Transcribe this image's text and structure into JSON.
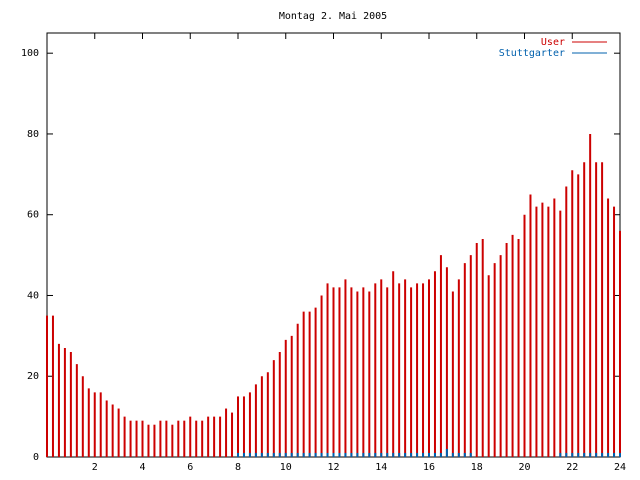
{
  "chart_data": {
    "type": "impulses",
    "title": "Montag 2. Mai 2005",
    "x": [
      0,
      0.25,
      0.5,
      0.75,
      1,
      1.25,
      1.5,
      1.75,
      2,
      2.25,
      2.5,
      2.75,
      3,
      3.25,
      3.5,
      3.75,
      4,
      4.25,
      4.5,
      4.75,
      5,
      5.25,
      5.5,
      5.75,
      6,
      6.25,
      6.5,
      6.75,
      7,
      7.25,
      7.5,
      7.75,
      8,
      8.25,
      8.5,
      8.75,
      9,
      9.25,
      9.5,
      9.75,
      10,
      10.25,
      10.5,
      10.75,
      11,
      11.25,
      11.5,
      11.75,
      12,
      12.25,
      12.5,
      12.75,
      13,
      13.25,
      13.5,
      13.75,
      14,
      14.25,
      14.5,
      14.75,
      15,
      15.25,
      15.5,
      15.75,
      16,
      16.25,
      16.5,
      16.75,
      17,
      17.25,
      17.5,
      17.75,
      18,
      18.25,
      18.5,
      18.75,
      19,
      19.25,
      19.5,
      19.75,
      20,
      20.25,
      20.5,
      20.75,
      21,
      21.25,
      21.5,
      21.75,
      22,
      22.25,
      22.5,
      22.75,
      23,
      23.25,
      23.5,
      23.75,
      24
    ],
    "series": [
      {
        "name": "User",
        "color": "#cc0000",
        "values": [
          35,
          35,
          28,
          27,
          26,
          23,
          20,
          17,
          16,
          16,
          14,
          13,
          12,
          10,
          9,
          9,
          9,
          8,
          8,
          9,
          9,
          8,
          9,
          9,
          10,
          9,
          9,
          10,
          10,
          10,
          12,
          11,
          15,
          15,
          16,
          18,
          20,
          21,
          24,
          26,
          29,
          30,
          33,
          36,
          36,
          37,
          40,
          43,
          42,
          42,
          44,
          42,
          41,
          42,
          41,
          43,
          44,
          42,
          46,
          43,
          44,
          42,
          43,
          43,
          44,
          46,
          50,
          47,
          41,
          44,
          48,
          50,
          53,
          54,
          45,
          48,
          50,
          53,
          55,
          54,
          60,
          65,
          62,
          63,
          62,
          64,
          61,
          67,
          71,
          70,
          73,
          80,
          73,
          73,
          64,
          62,
          56
        ]
      },
      {
        "name": "Stuttgarter",
        "color": "#0060ad",
        "values": [
          0,
          0,
          0,
          0,
          0,
          0,
          0,
          0,
          0,
          0,
          0,
          0,
          0,
          0,
          0,
          0,
          0,
          0,
          0,
          0,
          0,
          0,
          0,
          0,
          0,
          0,
          0,
          0,
          0,
          0,
          0,
          0,
          1,
          1,
          1,
          1,
          1,
          1,
          1,
          1,
          1,
          1,
          1,
          1,
          1,
          1,
          1,
          1,
          1,
          1,
          1,
          1,
          1,
          1,
          1,
          1,
          1,
          1,
          1,
          1,
          1,
          1,
          1,
          1,
          1,
          1,
          1,
          2,
          1,
          1,
          1,
          1,
          0,
          0,
          0,
          0,
          0,
          0,
          0,
          0,
          0,
          0,
          0,
          0,
          0,
          0,
          1,
          1,
          1,
          1,
          1,
          1,
          1,
          1,
          1,
          1,
          1
        ]
      }
    ],
    "xlim": [
      0,
      24
    ],
    "xticks": [
      2,
      4,
      6,
      8,
      10,
      12,
      14,
      16,
      18,
      20,
      22,
      24
    ],
    "ylim": [
      0,
      105
    ],
    "yticks": [
      0,
      20,
      40,
      60,
      80,
      100
    ]
  }
}
